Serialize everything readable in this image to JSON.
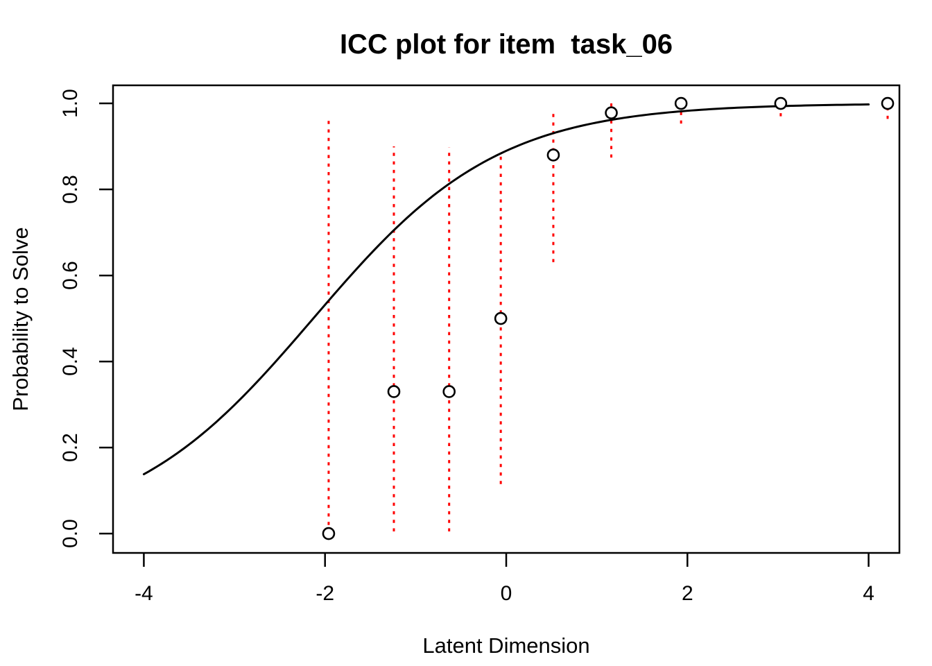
{
  "figure": {
    "background": "#FFFFFF"
  },
  "chart_data": {
    "type": "scatter",
    "title": "ICC plot for item  task_06",
    "xlabel": "Latent Dimension",
    "ylabel": "Probability to Solve",
    "xlim": [
      -4.34,
      4.34
    ],
    "ylim": [
      -0.045,
      1.042
    ],
    "x_ticks": [
      -4,
      -2,
      0,
      2,
      4
    ],
    "x_tick_labels": [
      "-4",
      "-2",
      "0",
      "2",
      "4"
    ],
    "y_ticks": [
      0.0,
      0.2,
      0.4,
      0.6,
      0.8,
      1.0
    ],
    "y_tick_labels": [
      "0.0",
      "0.2",
      "0.4",
      "0.6",
      "0.8",
      "1.0"
    ],
    "grid": false,
    "legend": null,
    "icc_curve": {
      "model": "logistic-2pl",
      "discrimination": 0.98,
      "difficulty": -2.13,
      "theta_range": [
        -4.0,
        4.0
      ]
    },
    "points": [
      {
        "theta": -1.96,
        "p": 0.0,
        "ci": [
          0.0,
          0.969
        ]
      },
      {
        "theta": -1.24,
        "p": 0.33,
        "ci": [
          0.005,
          0.9
        ]
      },
      {
        "theta": -0.63,
        "p": 0.33,
        "ci": [
          0.005,
          0.898
        ]
      },
      {
        "theta": -0.06,
        "p": 0.5,
        "ci": [
          0.115,
          0.882
        ]
      },
      {
        "theta": 0.52,
        "p": 0.88,
        "ci": [
          0.631,
          0.985
        ]
      },
      {
        "theta": 1.16,
        "p": 0.978,
        "ci": [
          0.874,
          1.0
        ]
      },
      {
        "theta": 1.93,
        "p": 1.0,
        "ci": [
          0.953,
          1.0
        ]
      },
      {
        "theta": 3.03,
        "p": 1.0,
        "ci": [
          0.97,
          1.0
        ]
      },
      {
        "theta": 4.21,
        "p": 1.0,
        "ci": [
          0.964,
          1.0
        ]
      }
    ],
    "colors": {
      "curve": "#000000",
      "points": "#000000",
      "point_fill": "#FFFFFF",
      "ci": "#FF0000",
      "axis": "#000000"
    }
  }
}
